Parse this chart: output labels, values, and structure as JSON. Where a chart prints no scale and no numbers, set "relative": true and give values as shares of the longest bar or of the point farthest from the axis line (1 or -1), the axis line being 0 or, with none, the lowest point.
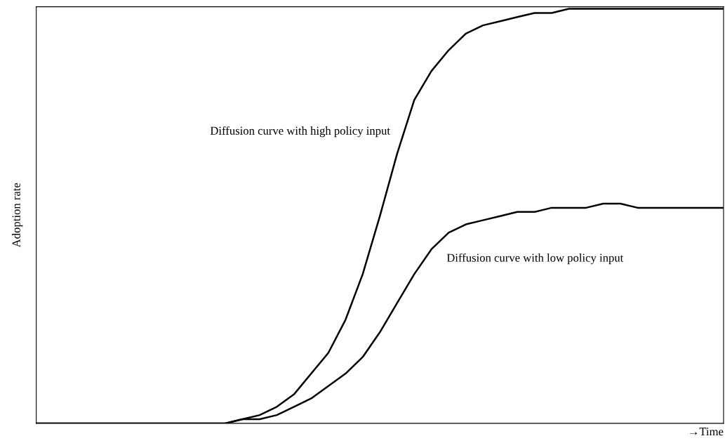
{
  "chart_data": {
    "type": "line",
    "relative": true,
    "xlabel": "→Time",
    "ylabel": "Adoption rate",
    "legend": false,
    "marker": "none",
    "line_style": "solid",
    "categories": [
      null,
      null,
      null,
      null,
      null,
      null,
      null,
      null,
      null,
      null,
      null,
      null,
      null,
      null,
      null,
      null,
      null,
      null,
      null,
      null,
      null,
      null,
      null,
      null,
      null,
      null,
      null,
      null,
      null,
      null,
      null,
      null,
      null,
      null,
      null,
      null,
      null,
      null,
      null,
      null,
      null
    ],
    "series": [
      {
        "name": "Diffusion curve with high policy input",
        "color": "#000000",
        "values": [
          0,
          0,
          0,
          0,
          0,
          0,
          0,
          0,
          0,
          0,
          0,
          0,
          0.01,
          0.02,
          0.04,
          0.07,
          0.12,
          0.17,
          0.25,
          0.36,
          0.5,
          0.65,
          0.78,
          0.85,
          0.9,
          0.94,
          0.96,
          0.97,
          0.98,
          0.99,
          0.99,
          1,
          1,
          1,
          1,
          1,
          1,
          1,
          1,
          1,
          1
        ]
      },
      {
        "name": "Diffusion curve with low policy input",
        "color": "#000000",
        "values": [
          0,
          0,
          0,
          0,
          0,
          0,
          0,
          0,
          0,
          0,
          0,
          0,
          0.01,
          0.01,
          0.02,
          0.04,
          0.06,
          0.09,
          0.12,
          0.16,
          0.22,
          0.29,
          0.36,
          0.42,
          0.46,
          0.48,
          0.49,
          0.5,
          0.51,
          0.51,
          0.52,
          0.52,
          0.52,
          0.53,
          0.53,
          0.52,
          0.52,
          0.52,
          0.52,
          0.52,
          0.52
        ]
      }
    ]
  }
}
